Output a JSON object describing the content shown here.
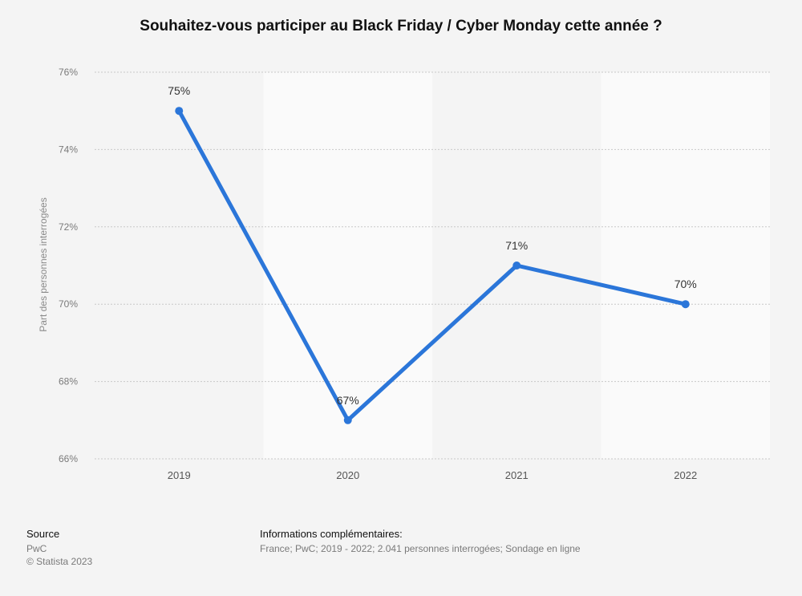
{
  "chart_data": {
    "type": "line",
    "title": "Souhaitez-vous participer au Black Friday / Cyber Monday cette année ?",
    "ylabel": "Part des personnes interrogées",
    "xlabel": "",
    "categories": [
      "2019",
      "2020",
      "2021",
      "2022"
    ],
    "series": [
      {
        "values": [
          75,
          67,
          71,
          70
        ],
        "labels": [
          "75%",
          "67%",
          "71%",
          "70%"
        ],
        "color": "#2b76d9"
      }
    ],
    "ylim": [
      66,
      76
    ],
    "yticks": [
      66,
      68,
      70,
      72,
      74,
      76
    ],
    "ytick_labels": [
      "66%",
      "68%",
      "70%",
      "72%",
      "74%",
      "76%"
    ],
    "grid": true
  },
  "footer": {
    "source_label": "Source",
    "source_value": "PwC",
    "copyright": "© Statista 2023",
    "info_label": "Informations complémentaires:",
    "info_value": "France; PwC; 2019 - 2022; 2.041 personnes interrogées; Sondage en ligne"
  }
}
